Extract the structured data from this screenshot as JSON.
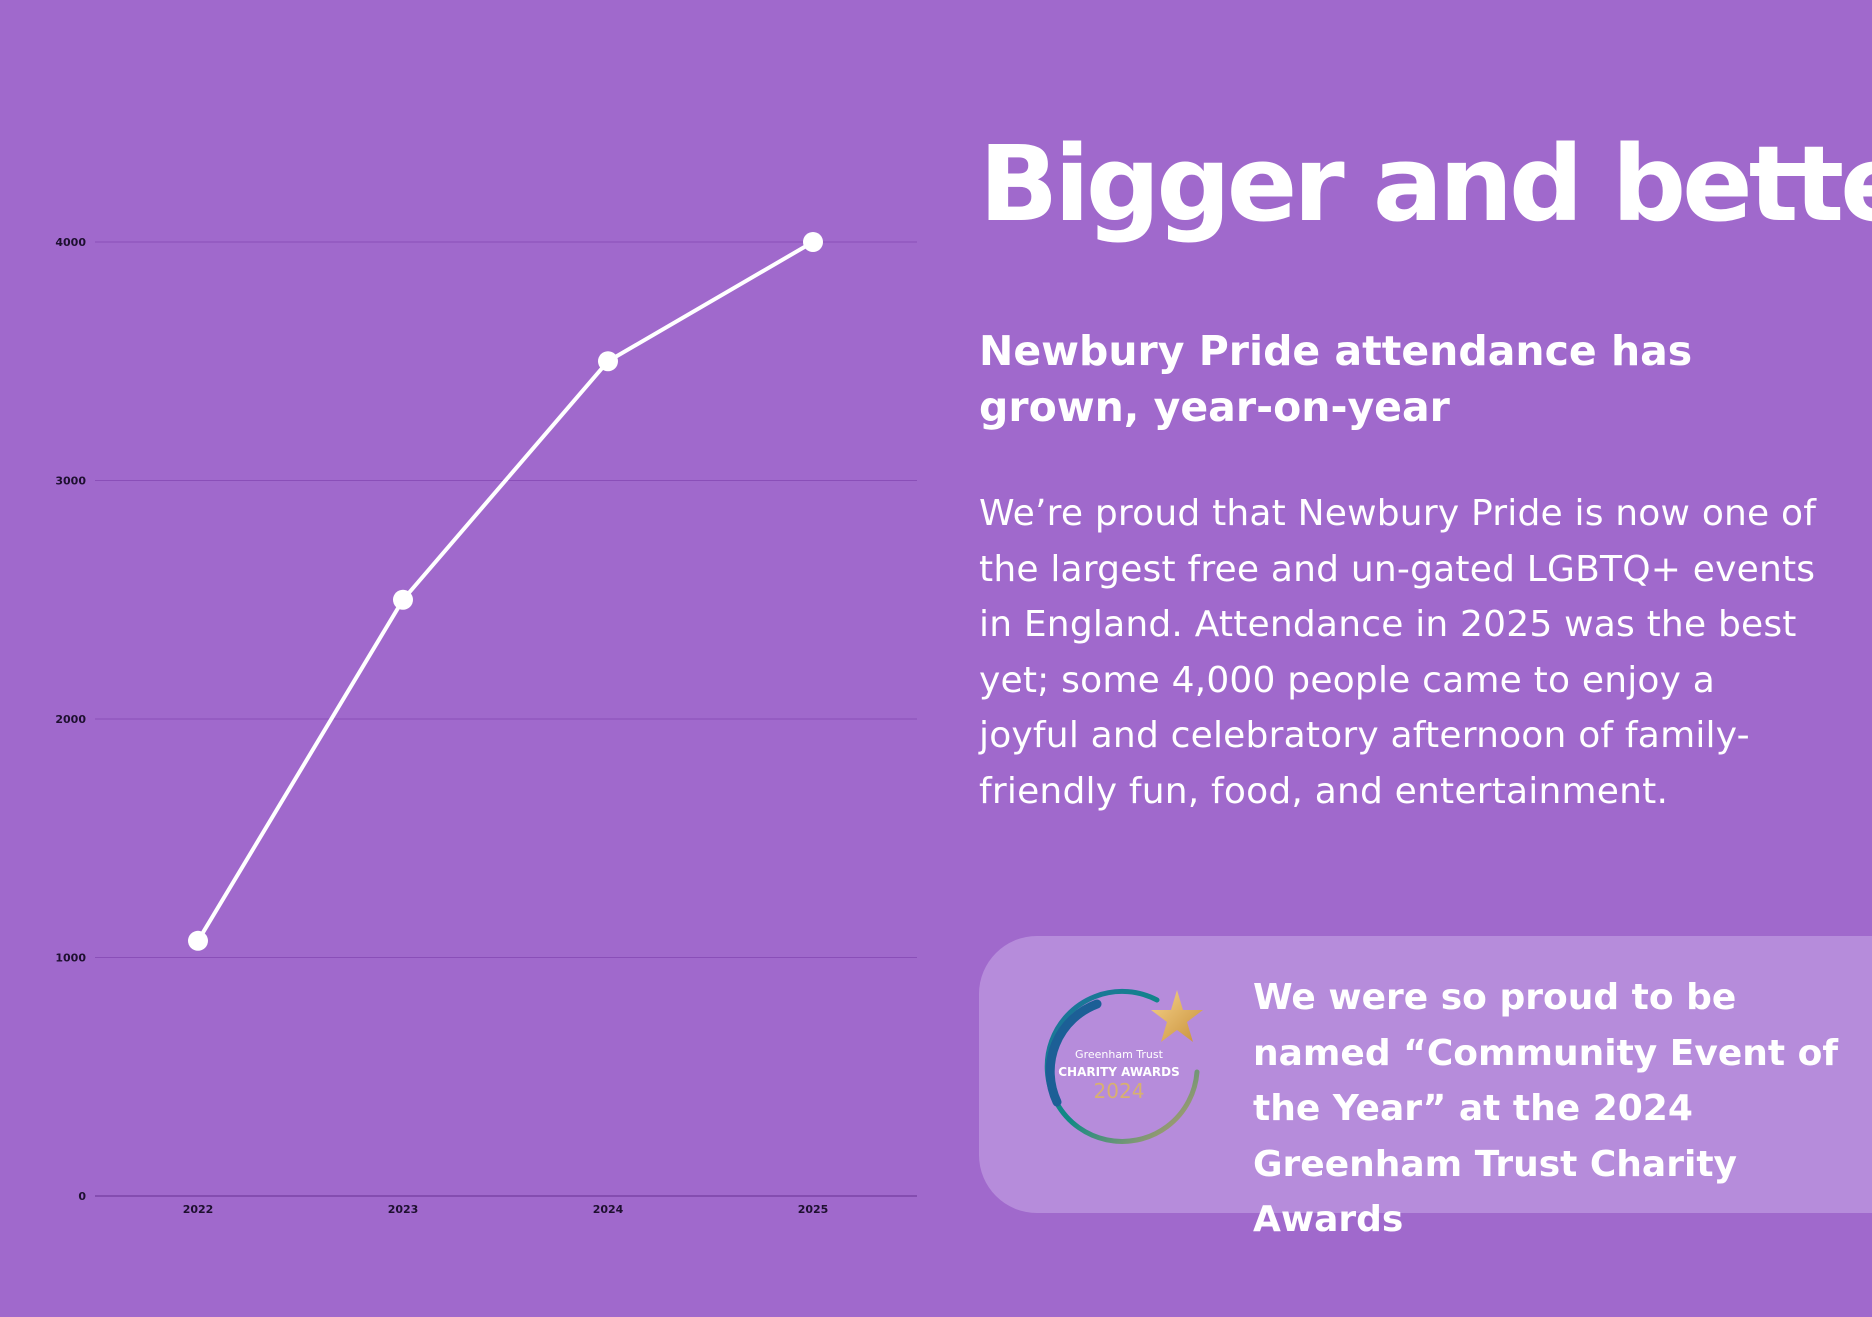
{
  "headline": "Bigger and better",
  "subhead": "Newbury Pride attendance has grown, year-on-year",
  "body": "We’re proud that Newbury Pride is now one of the largest free and un-gated LGBTQ+ events in England. Attendance in 2025 was the best yet; some 4,000 people came to enjoy a joyful and celebratory afternoon of family-friendly fun, food, and entertainment.",
  "award": {
    "text": "We were so proud to be named “Community Event of the Year” at the 2024 Greenham Trust Charity Awards",
    "logo_line1": "Greenham Trust",
    "logo_line2": "CHARITY AWARDS",
    "logo_year": "2024"
  },
  "colors": {
    "background": "#a069cc",
    "card": "#b68cdb",
    "line": "#ffffff",
    "gridline": "#8a4fb8"
  },
  "chart_data": {
    "type": "line",
    "categories": [
      "2022",
      "2023",
      "2024",
      "2025"
    ],
    "values": [
      1070,
      2500,
      3500,
      4000
    ],
    "y_ticks": [
      0,
      1000,
      2000,
      3000,
      4000
    ],
    "ylim": [
      0,
      4000
    ],
    "grid": true,
    "legend": "none"
  }
}
